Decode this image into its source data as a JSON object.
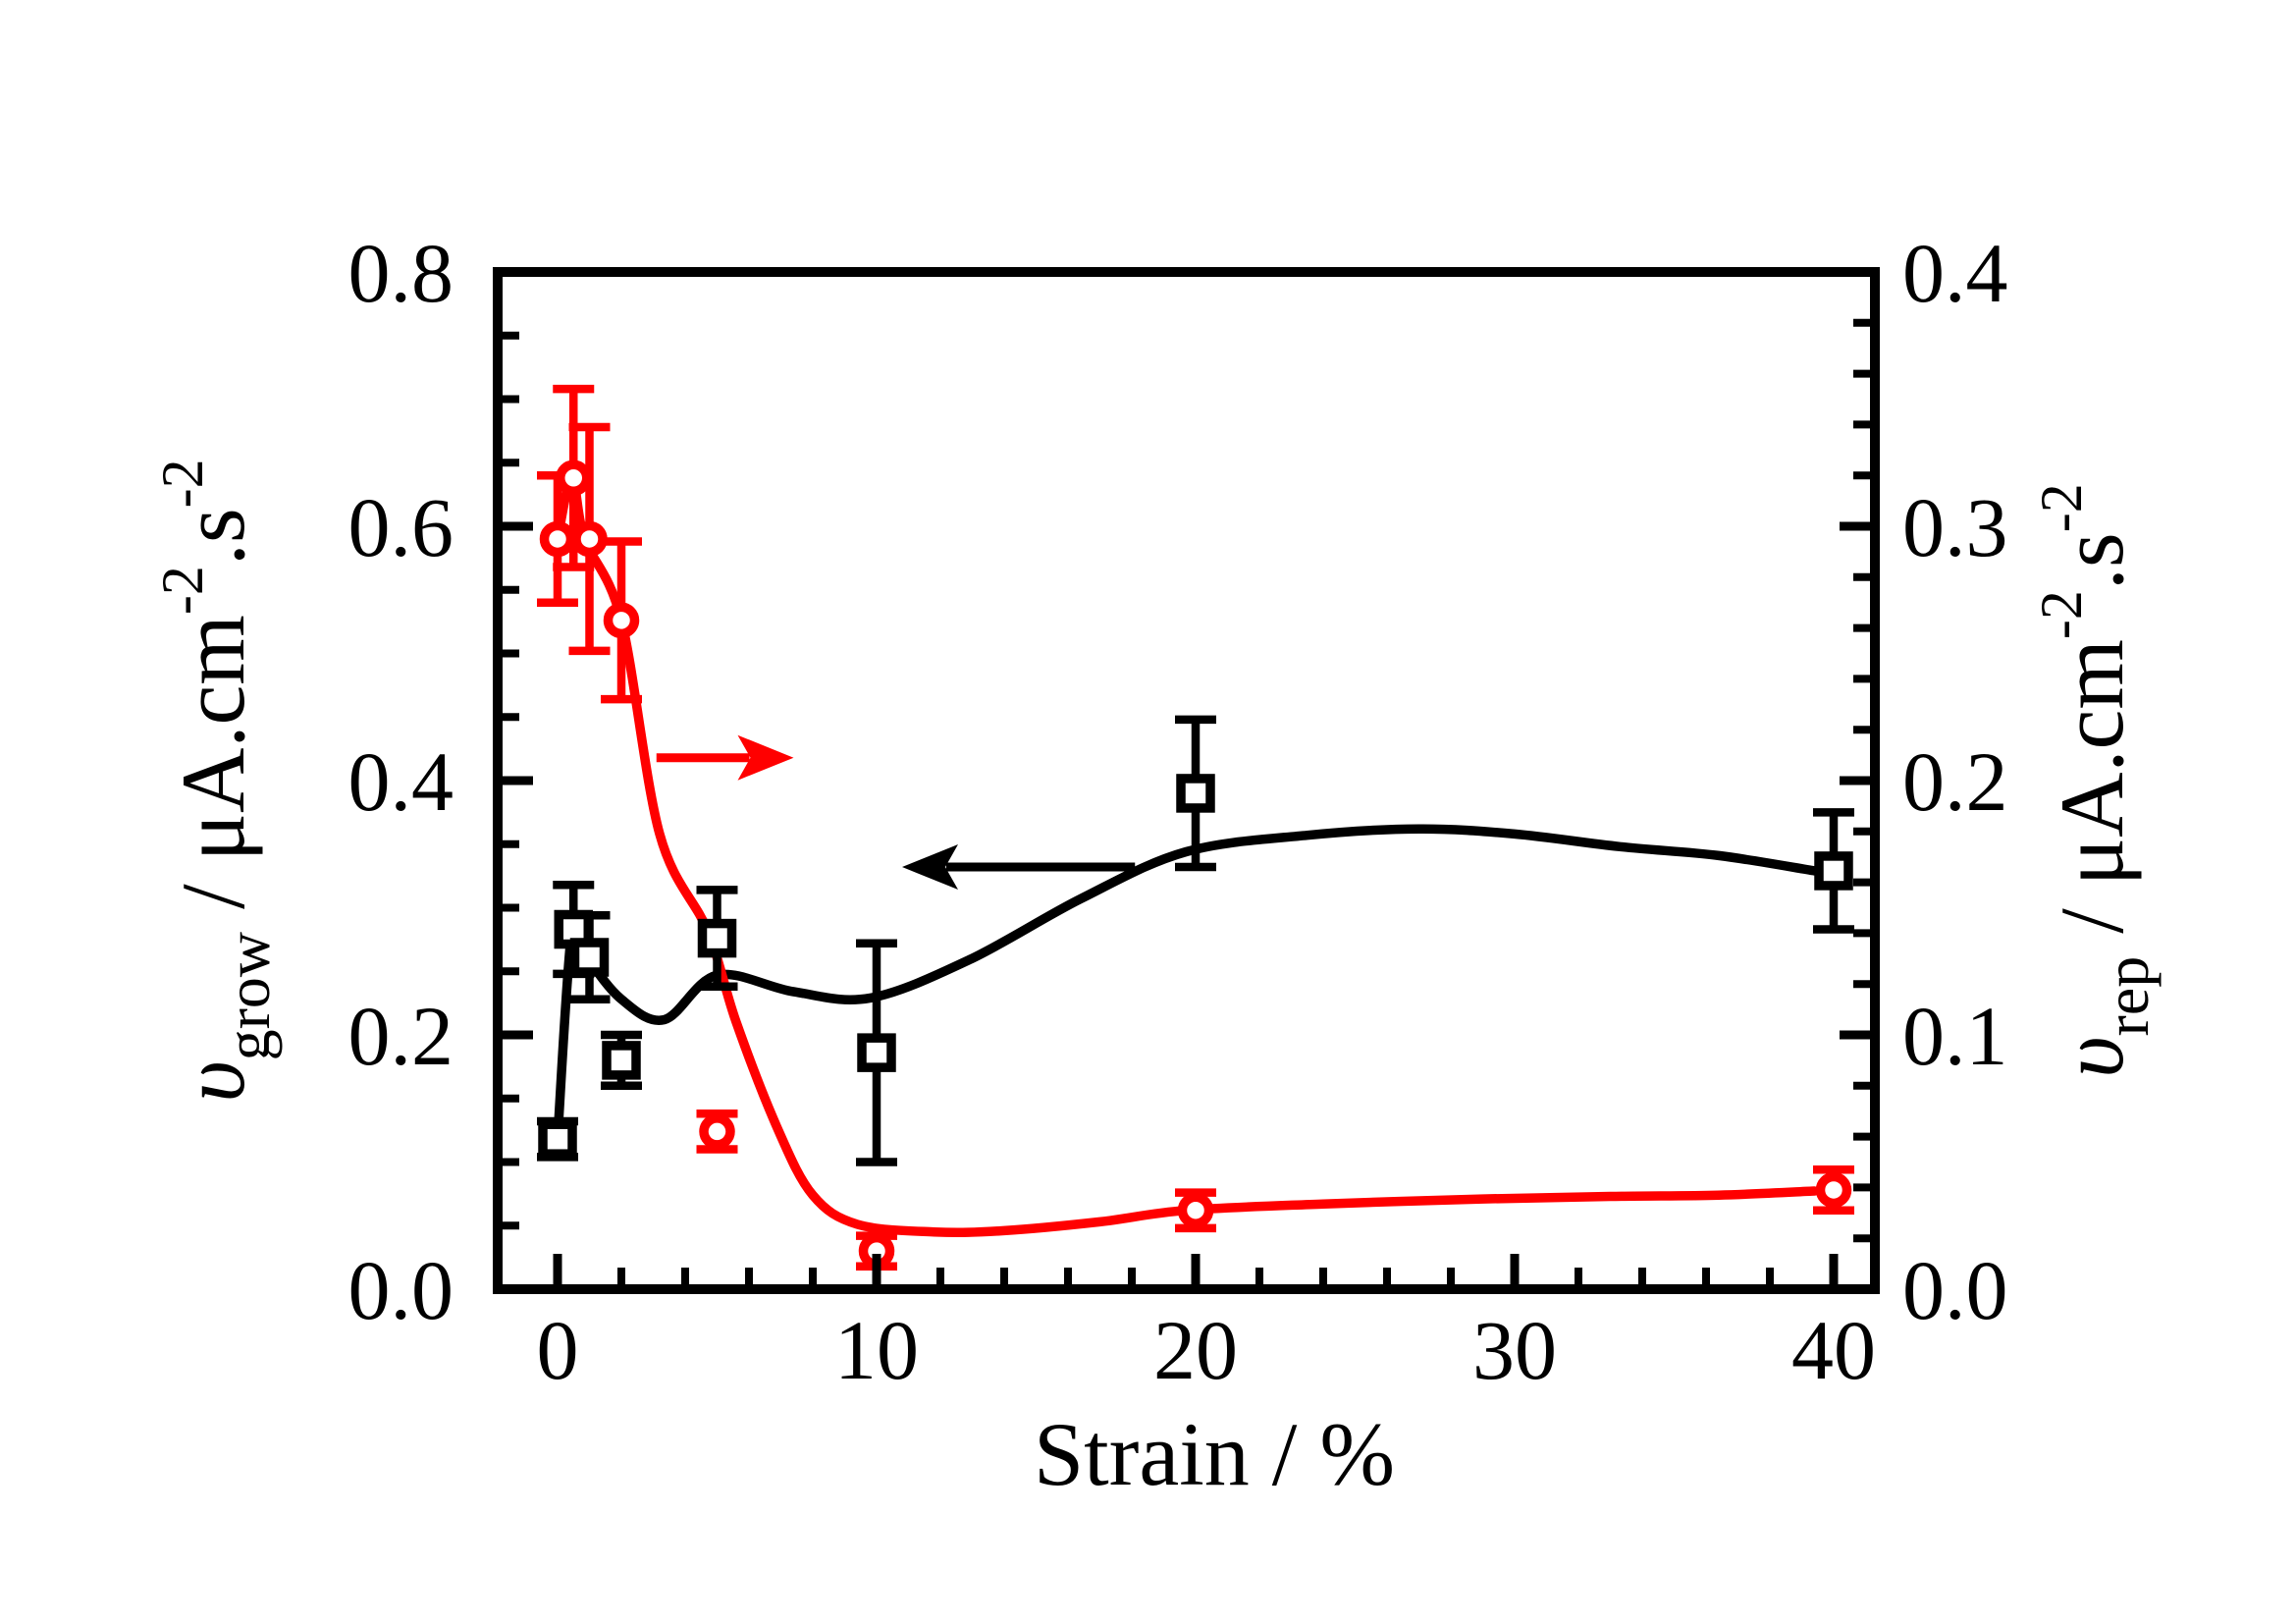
{
  "figure": {
    "background": "#ffffff",
    "description": "Dual-axis scatter plot with smooth fitted curves and error bars"
  },
  "colors": {
    "grow_series": "#000000",
    "rep_series": "#ff0000",
    "axis": "#000000",
    "background": "#ffffff"
  },
  "chart_data": {
    "type": "line",
    "subtype": "scatter-with-errorbars-and-smooth-fit",
    "title": "",
    "grid": false,
    "legend": false,
    "x_axis": {
      "label": "Strain / %",
      "range": [
        -1.9,
        41.3
      ],
      "major_ticks": [
        0,
        10,
        20,
        30,
        40
      ],
      "tick_labels": [
        "0",
        "10",
        "20",
        "30",
        "40"
      ],
      "minor_tick_step": 2
    },
    "left_y_axis": {
      "label_plain": "v_grow / uA.cm-2.s-2",
      "label_parts": [
        {
          "text": "υ",
          "italic": true
        },
        {
          "text": "grow",
          "script": "sub"
        },
        {
          "text": " / μA.cm"
        },
        {
          "text": "-2",
          "script": "sup"
        },
        {
          "text": ".s"
        },
        {
          "text": "-2",
          "script": "sup"
        }
      ],
      "range": [
        0.0,
        0.8
      ],
      "major_ticks": [
        0.0,
        0.2,
        0.4,
        0.6,
        0.8
      ],
      "tick_labels": [
        "0.0",
        "0.2",
        "0.4",
        "0.6",
        "0.8"
      ],
      "minor_tick_step": 0.05
    },
    "right_y_axis": {
      "label_plain": "v_rep / uA.cm-2.s-2",
      "label_parts": [
        {
          "text": "υ",
          "italic": true
        },
        {
          "text": "rep",
          "script": "sub"
        },
        {
          "text": " / μA.cm"
        },
        {
          "text": "-2",
          "script": "sup"
        },
        {
          "text": ".s"
        },
        {
          "text": "-2",
          "script": "sup"
        }
      ],
      "range": [
        0.0,
        0.4
      ],
      "major_ticks": [
        0.0,
        0.1,
        0.2,
        0.3,
        0.4
      ],
      "tick_labels": [
        "0.0",
        "0.1",
        "0.2",
        "0.3",
        "0.4"
      ],
      "minor_tick_step": 0.02
    },
    "series": [
      {
        "name": "grow",
        "axis": "left",
        "marker": "square",
        "color": "#000000",
        "points": [
          {
            "x": 0,
            "y": 0.118,
            "err": 0.014
          },
          {
            "x": 0.5,
            "y": 0.283,
            "err": 0.035
          },
          {
            "x": 1,
            "y": 0.261,
            "err": 0.033
          },
          {
            "x": 2,
            "y": 0.18,
            "err": 0.02
          },
          {
            "x": 5,
            "y": 0.276,
            "err": 0.038
          },
          {
            "x": 10,
            "y": 0.186,
            "err": 0.086
          },
          {
            "x": 20,
            "y": 0.39,
            "err": 0.058
          },
          {
            "x": 40,
            "y": 0.329,
            "err": 0.046
          }
        ],
        "curve": [
          [
            0,
            0.118
          ],
          [
            0.45,
            0.282
          ],
          [
            0.9,
            0.262
          ],
          [
            2.0,
            0.228
          ],
          [
            3.35,
            0.212
          ],
          [
            5.0,
            0.247
          ],
          [
            7.4,
            0.234
          ],
          [
            9.8,
            0.229
          ],
          [
            12.9,
            0.259
          ],
          [
            16.4,
            0.307
          ],
          [
            19.7,
            0.344
          ],
          [
            23.5,
            0.357
          ],
          [
            27,
            0.362
          ],
          [
            30,
            0.358
          ],
          [
            33.3,
            0.348
          ],
          [
            36.4,
            0.341
          ],
          [
            39.4,
            0.329
          ]
        ]
      },
      {
        "name": "rep",
        "axis": "right",
        "marker": "circle",
        "color": "#ff0000",
        "points": [
          {
            "x": 0,
            "y": 0.295,
            "err": 0.025
          },
          {
            "x": 0.5,
            "y": 0.319,
            "err": 0.035
          },
          {
            "x": 1,
            "y": 0.295,
            "err": 0.044
          },
          {
            "x": 2,
            "y": 0.263,
            "err": 0.031
          },
          {
            "x": 5,
            "y": 0.062,
            "err": 0.007
          },
          {
            "x": 10,
            "y": 0.015,
            "err": 0.006
          },
          {
            "x": 20,
            "y": 0.031,
            "err": 0.007
          },
          {
            "x": 40,
            "y": 0.039,
            "err": 0.008
          }
        ],
        "curve": [
          [
            0,
            0.295
          ],
          [
            0.45,
            0.319
          ],
          [
            0.85,
            0.295
          ],
          [
            2.0,
            0.263
          ],
          [
            3.2,
            0.179
          ],
          [
            4.7,
            0.141
          ],
          [
            5.6,
            0.105
          ],
          [
            6.9,
            0.063
          ],
          [
            8.0,
            0.037
          ],
          [
            9.4,
            0.0255
          ],
          [
            11.8,
            0.0225
          ],
          [
            14,
            0.023
          ],
          [
            17,
            0.0265
          ],
          [
            19.7,
            0.031
          ],
          [
            24,
            0.0335
          ],
          [
            29,
            0.0355
          ],
          [
            33,
            0.0365
          ],
          [
            36.4,
            0.037
          ],
          [
            39.4,
            0.0386
          ]
        ]
      }
    ],
    "arrows": [
      {
        "series": "grow",
        "color": "#000000",
        "direction": "left",
        "axis": "left",
        "x_tail": 18.1,
        "x_tip": 10.8,
        "value": 0.332
      },
      {
        "series": "rep",
        "color": "#ff0000",
        "direction": "right",
        "axis": "right",
        "x_tail": 3.1,
        "x_tip": 7.4,
        "value": 0.209
      }
    ]
  }
}
